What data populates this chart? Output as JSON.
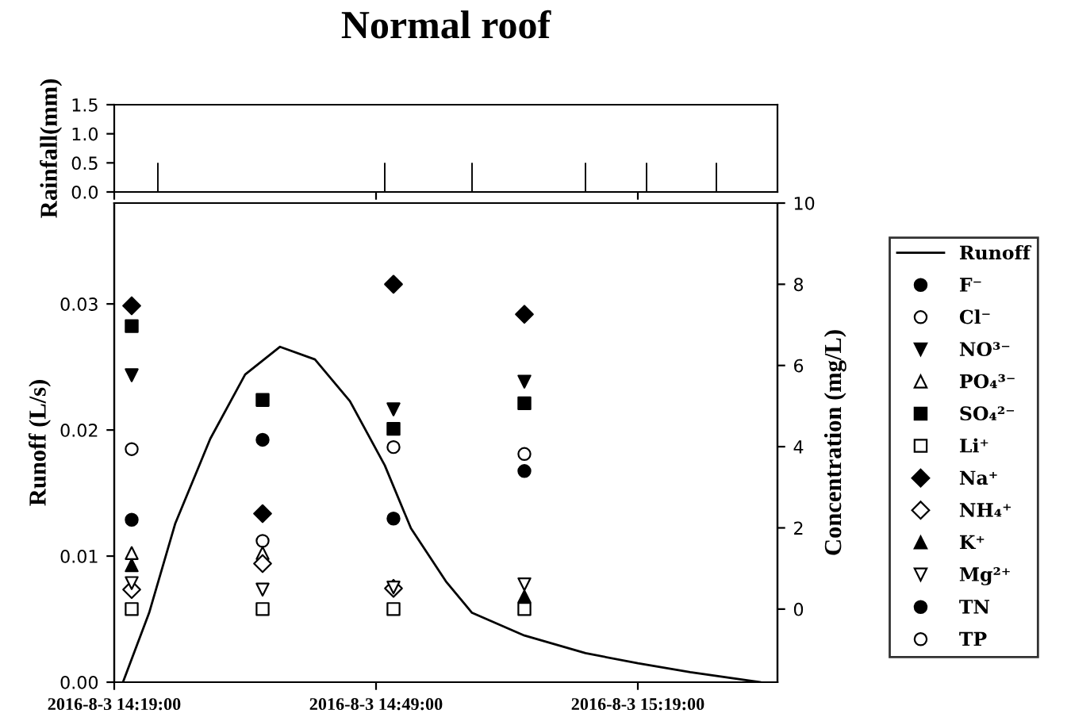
{
  "chart_data": [
    {
      "type": "bar",
      "title": "Normal roof",
      "ylabel": "Rainfall(mm)",
      "tick_labels": "y",
      "grid": false,
      "legend": false,
      "x": [
        "2016-08-03T14:24",
        "2016-08-03T14:50",
        "2016-08-03T15:00",
        "2016-08-03T15:13",
        "2016-08-03T15:20",
        "2016-08-03T15:28"
      ],
      "values": [
        0.5,
        0.5,
        0.5,
        0.5,
        0.5,
        0.5
      ],
      "color": "#000000",
      "xlim": [
        "2016-08-03T14:19",
        "2016-08-03T15:35"
      ],
      "xticks": [
        {
          "value": "2016-08-03T14:19",
          "label": null
        },
        {
          "value": "2016-08-03T14:49",
          "label": null
        },
        {
          "value": "2016-08-03T15:19",
          "label": null
        }
      ],
      "ylim": [
        0,
        1.5
      ],
      "yticks": [
        {
          "value": 0,
          "label": "0.0"
        },
        {
          "value": 0.5,
          "label": "0.5"
        },
        {
          "value": 1.0,
          "label": "1.0"
        },
        {
          "value": 1.5,
          "label": "1.5"
        }
      ]
    },
    {
      "type": "scatter",
      "ylabel": "Runoff (L/s)",
      "y2label": "Concentration (mg/L)",
      "grid": false,
      "legend": "right",
      "xlim": [
        "2016-08-03T14:19",
        "2016-08-03T15:35"
      ],
      "xticks": [
        {
          "value": "2016-08-03T14:19",
          "label": "2016-8-3 14:19:00"
        },
        {
          "value": "2016-08-03T14:49",
          "label": "2016-8-3 14:49:00"
        },
        {
          "value": "2016-08-03T15:19",
          "label": "2016-8-3 15:19:00"
        }
      ],
      "ylim": [
        0,
        0.038
      ],
      "yticks": [
        {
          "value": 0,
          "label": "0.00"
        },
        0.01,
        0.02,
        0.03
      ],
      "y2lim": [
        -1.8,
        10
      ],
      "y2ticks": [
        0,
        2,
        4,
        6,
        8,
        10
      ],
      "series": [
        {
          "name": "Runoff",
          "type": "line",
          "axis": "y",
          "color": "#000000",
          "marker": "none",
          "line_style": "solid",
          "x": [
            "2016-08-03T14:20",
            "2016-08-03T14:23",
            "2016-08-03T14:26",
            "2016-08-03T14:30",
            "2016-08-03T14:34",
            "2016-08-03T14:38",
            "2016-08-03T14:42",
            "2016-08-03T14:46",
            "2016-08-03T14:50",
            "2016-08-03T14:53",
            "2016-08-03T14:57",
            "2016-08-03T15:00",
            "2016-08-03T15:06",
            "2016-08-03T15:13",
            "2016-08-03T15:19",
            "2016-08-03T15:25",
            "2016-08-03T15:33"
          ],
          "values": [
            0,
            0.0055,
            0.0126,
            0.0193,
            0.0244,
            0.0266,
            0.0256,
            0.0223,
            0.0172,
            0.0122,
            0.008,
            0.0055,
            0.0037,
            0.0023,
            0.0015,
            0.0008,
            0
          ]
        },
        {
          "name": "F⁻",
          "axis": "y2",
          "color": "#000000",
          "marker": "circle"
        },
        {
          "name": "Cl⁻",
          "axis": "y2",
          "color": "#ffffff",
          "marker": "circle",
          "x": [
            "2016-08-03T14:21",
            "2016-08-03T14:36",
            "2016-08-03T14:51",
            "2016-08-03T15:06"
          ],
          "values": [
            3.94,
            1.68,
            3.99,
            3.82
          ]
        },
        {
          "name": "NO³⁻",
          "axis": "y2",
          "color": "#000000",
          "marker": "triangle_down",
          "x": [
            "2016-08-03T14:21",
            "2016-08-03T14:51",
            "2016-08-03T15:06"
          ],
          "values": [
            5.76,
            4.92,
            5.6
          ]
        },
        {
          "name": "PO₄³⁻",
          "axis": "y2",
          "color": "#ffffff",
          "marker": "triangle",
          "x": [
            "2016-08-03T14:21",
            "2016-08-03T14:36"
          ],
          "values": [
            1.38,
            1.38
          ]
        },
        {
          "name": "SO₄²⁻",
          "axis": "y2",
          "color": "#000000",
          "marker": "square",
          "x": [
            "2016-08-03T14:21",
            "2016-08-03T14:36",
            "2016-08-03T14:51",
            "2016-08-03T15:06"
          ],
          "values": [
            6.97,
            5.15,
            4.44,
            5.07
          ]
        },
        {
          "name": "Li⁺",
          "axis": "y2",
          "color": "#ffffff",
          "marker": "square",
          "x": [
            "2016-08-03T14:21",
            "2016-08-03T14:36",
            "2016-08-03T14:51",
            "2016-08-03T15:06"
          ],
          "values": [
            0.0,
            0.0,
            0.0,
            0.0
          ]
        },
        {
          "name": "Na⁺",
          "axis": "y2",
          "color": "#000000",
          "marker": "diamond",
          "x": [
            "2016-08-03T14:21",
            "2016-08-03T14:36",
            "2016-08-03T14:51",
            "2016-08-03T15:06"
          ],
          "values": [
            7.47,
            2.35,
            8.0,
            7.26
          ]
        },
        {
          "name": "NH₄⁺",
          "axis": "y2",
          "color": "#ffffff",
          "marker": "diamond",
          "x": [
            "2016-08-03T14:21",
            "2016-08-03T14:36",
            "2016-08-03T14:51"
          ],
          "values": [
            0.48,
            1.12,
            0.51
          ]
        },
        {
          "name": "K⁺",
          "axis": "y2",
          "color": "#000000",
          "marker": "triangle",
          "x": [
            "2016-08-03T14:21",
            "2016-08-03T15:06"
          ],
          "values": [
            1.08,
            0.31
          ]
        },
        {
          "name": "Mg²⁺",
          "axis": "y2",
          "color": "#ffffff",
          "marker": "triangle_down",
          "x": [
            "2016-08-03T14:21",
            "2016-08-03T14:36",
            "2016-08-03T14:51",
            "2016-08-03T15:06"
          ],
          "values": [
            0.64,
            0.48,
            0.53,
            0.61
          ]
        },
        {
          "name": "TN",
          "axis": "y2",
          "color": "#000000",
          "marker": "circle",
          "x": [
            "2016-08-03T14:21",
            "2016-08-03T14:36",
            "2016-08-03T14:51",
            "2016-08-03T15:06"
          ],
          "values": [
            2.2,
            4.17,
            2.23,
            3.4
          ]
        },
        {
          "name": "TP",
          "axis": "y2",
          "color": "#ffffff",
          "marker": "circle"
        }
      ]
    }
  ]
}
